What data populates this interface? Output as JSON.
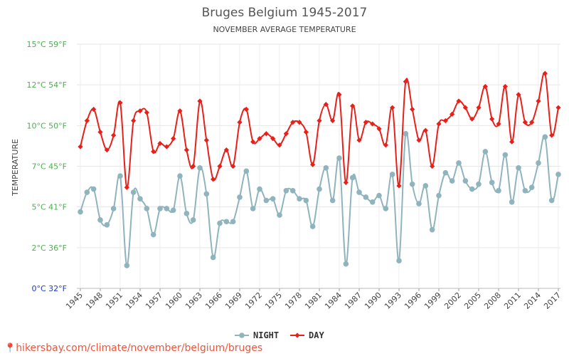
{
  "chart_data": {
    "type": "line",
    "title": "Bruges Belgium 1945-2017",
    "subtitle": "NOVEMBER AVERAGE TEMPERATURE",
    "ylabel": "TEMPERATURE",
    "y_ticks": [
      {
        "value": 0,
        "label": "0°C 32°F",
        "color": "#1a3cc8"
      },
      {
        "value": 2.5,
        "label": "2°C 36°F",
        "color": "#4caf50"
      },
      {
        "value": 5,
        "label": "5°C 41°F",
        "color": "#4caf50"
      },
      {
        "value": 7.5,
        "label": "7°C 45°F",
        "color": "#4caf50"
      },
      {
        "value": 10,
        "label": "10°C 50°F",
        "color": "#4caf50"
      },
      {
        "value": 12.5,
        "label": "12°C 54°F",
        "color": "#4caf50"
      },
      {
        "value": 15,
        "label": "15°C 59°F",
        "color": "#4caf50"
      }
    ],
    "ylim": [
      0,
      15
    ],
    "grid": true,
    "legend_position": "bottom-center",
    "x_ticks": [
      "1945",
      "1948",
      "1951",
      "1954",
      "1957",
      "1960",
      "1963",
      "1966",
      "1969",
      "1972",
      "1975",
      "1978",
      "1981",
      "1984",
      "1987",
      "1990",
      "1993",
      "1996",
      "1999",
      "2002",
      "2005",
      "2008",
      "2011",
      "2014",
      "2017"
    ],
    "x": [
      1945,
      1946,
      1947,
      1948,
      1949,
      1950,
      1951,
      1952,
      1953,
      1954,
      1955,
      1956,
      1957,
      1958,
      1959,
      1960,
      1961,
      1962,
      1963,
      1964,
      1965,
      1966,
      1967,
      1968,
      1969,
      1970,
      1971,
      1972,
      1973,
      1974,
      1975,
      1976,
      1977,
      1978,
      1979,
      1980,
      1981,
      1982,
      1983,
      1984,
      1985,
      1986,
      1987,
      1988,
      1989,
      1990,
      1991,
      1992,
      1993,
      1994,
      1995,
      1996,
      1997,
      1998,
      1999,
      2000,
      2001,
      2002,
      2003,
      2004,
      2005,
      2006,
      2007,
      2008,
      2009,
      2010,
      2011,
      2012,
      2013,
      2014,
      2015,
      2016,
      2017
    ],
    "series": [
      {
        "name": "NIGHT",
        "color": "#90b4be",
        "values": [
          4.7,
          5.9,
          6.1,
          4.2,
          3.9,
          4.9,
          6.9,
          1.4,
          5.9,
          5.5,
          4.9,
          3.3,
          4.9,
          4.9,
          4.8,
          6.9,
          4.6,
          4.2,
          7.4,
          5.8,
          1.9,
          4.0,
          4.1,
          4.1,
          5.6,
          7.2,
          4.9,
          6.1,
          5.4,
          5.5,
          4.5,
          6.0,
          6.0,
          5.5,
          5.4,
          3.8,
          6.1,
          7.4,
          5.4,
          8.0,
          1.5,
          6.8,
          5.9,
          5.6,
          5.3,
          5.7,
          4.9,
          7.0,
          1.7,
          9.5,
          6.4,
          5.2,
          6.3,
          3.6,
          5.7,
          7.1,
          6.6,
          7.7,
          6.6,
          6.1,
          6.4,
          8.4,
          6.5,
          6.0,
          8.2,
          5.3,
          7.4,
          6.0,
          6.2,
          7.7,
          9.3,
          5.4,
          7.0
        ]
      },
      {
        "name": "DAY",
        "color": "#e8201a",
        "values": [
          8.7,
          10.3,
          11.0,
          9.6,
          8.5,
          9.4,
          11.4,
          6.2,
          10.3,
          10.9,
          10.8,
          8.4,
          8.9,
          8.7,
          9.2,
          10.9,
          8.5,
          7.5,
          11.5,
          9.1,
          6.7,
          7.5,
          8.5,
          7.5,
          10.2,
          11.0,
          9.0,
          9.2,
          9.5,
          9.2,
          8.8,
          9.5,
          10.2,
          10.2,
          9.6,
          7.6,
          10.3,
          11.3,
          10.3,
          11.9,
          6.5,
          11.2,
          9.1,
          10.2,
          10.1,
          9.8,
          8.8,
          11.1,
          6.3,
          12.7,
          11.0,
          9.1,
          9.7,
          7.5,
          10.1,
          10.3,
          10.7,
          11.5,
          11.1,
          10.4,
          11.1,
          12.4,
          10.4,
          10.1,
          12.4,
          9.0,
          11.9,
          10.2,
          10.2,
          11.5,
          13.2,
          9.4,
          11.1
        ]
      }
    ]
  }
}
